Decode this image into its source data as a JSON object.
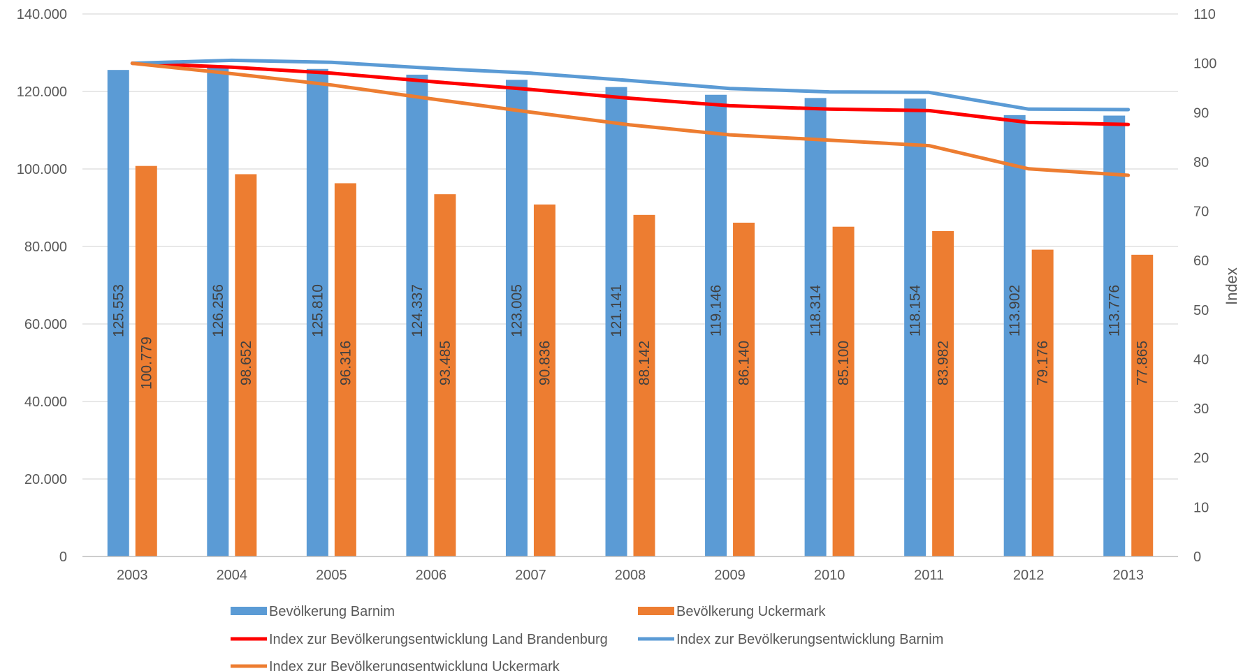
{
  "chart_data": {
    "type": "bar",
    "categories": [
      "2003",
      "2004",
      "2005",
      "2006",
      "2007",
      "2008",
      "2009",
      "2010",
      "2011",
      "2012",
      "2013"
    ],
    "bar_series": [
      {
        "name": "Bevölkerung Barnim",
        "color": "#5B9BD5",
        "values": [
          125553,
          126256,
          125810,
          124337,
          123005,
          121141,
          119146,
          118314,
          118154,
          113902,
          113776
        ],
        "labels": [
          "125.553",
          "126.256",
          "125.810",
          "124.337",
          "123.005",
          "121.141",
          "119.146",
          "118.314",
          "118.154",
          "113.902",
          "113.776"
        ]
      },
      {
        "name": "Bevölkerung Uckermark",
        "color": "#ED7D31",
        "values": [
          100779,
          98652,
          96316,
          93485,
          90836,
          88142,
          86140,
          85100,
          83982,
          79176,
          77865
        ],
        "labels": [
          "100.779",
          "98.652",
          "96.316",
          "93.485",
          "90.836",
          "88.142",
          "86.140",
          "85.100",
          "83.982",
          "79.176",
          "77.865"
        ]
      }
    ],
    "line_series": [
      {
        "name": "Index zur Bevölkerungsentwicklung Land Brandenburg",
        "color": "#FF0000",
        "values": [
          100,
          99.2,
          98.0,
          96.3,
          94.7,
          92.9,
          91.4,
          90.7,
          90.4,
          88.0,
          87.6
        ]
      },
      {
        "name": "Index zur Bevölkerungsentwicklung Barnim",
        "color": "#5B9BD5",
        "values": [
          100,
          100.6,
          100.2,
          99.0,
          98.0,
          96.5,
          94.9,
          94.2,
          94.1,
          90.7,
          90.6
        ]
      },
      {
        "name": "Index zur Bevölkerungsentwicklung Uckermark",
        "color": "#ED7D31",
        "values": [
          100,
          97.9,
          95.6,
          92.8,
          90.1,
          87.5,
          85.5,
          84.4,
          83.3,
          78.6,
          77.3
        ]
      }
    ],
    "y_left": {
      "min": 0,
      "max": 140000,
      "ticks": [
        "0",
        "20.000",
        "40.000",
        "60.000",
        "80.000",
        "100.000",
        "120.000",
        "140.000"
      ]
    },
    "y_right": {
      "min": 0,
      "max": 110,
      "label": "Index",
      "ticks": [
        "0",
        "10",
        "20",
        "30",
        "40",
        "50",
        "60",
        "70",
        "80",
        "90",
        "100",
        "110"
      ]
    },
    "grid": true,
    "legend_position": "bottom"
  }
}
